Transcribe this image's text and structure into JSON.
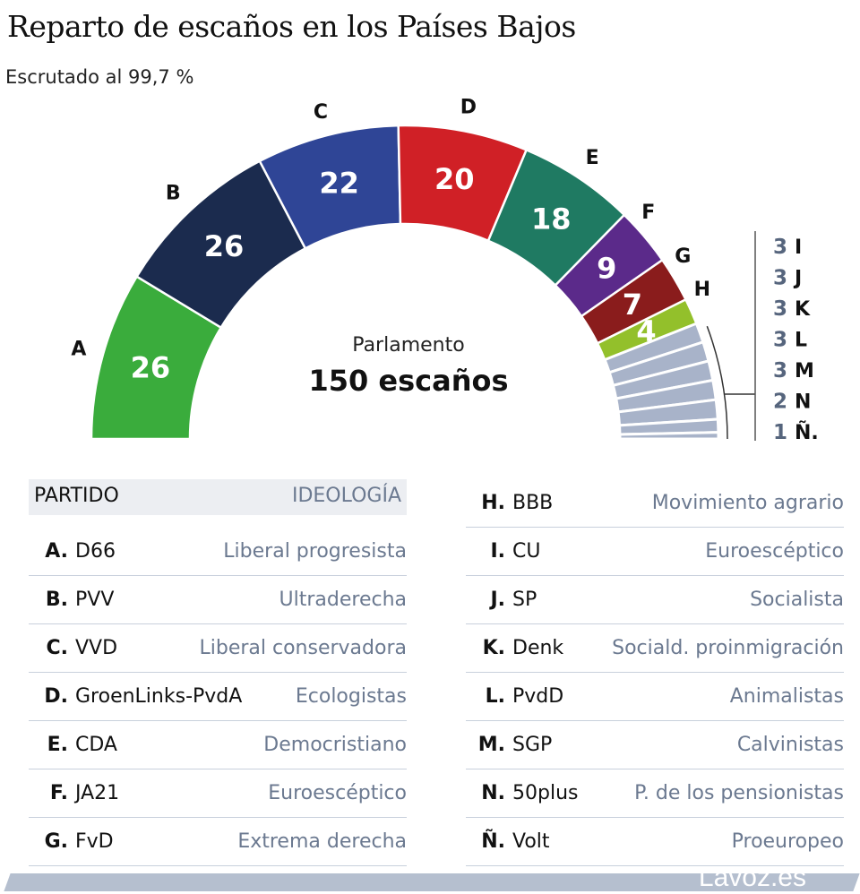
{
  "title": "Reparto de escaños en los Países Bajos",
  "subtitle": "Escrutado al 99,7 %",
  "logo": "Lavoz.es",
  "chart_data": {
    "type": "parliament",
    "center_label": "Parlamento",
    "center_total": "150 escaños",
    "total": 150,
    "parties": [
      {
        "letter": "A",
        "name": "D66",
        "ideology": "Liberal progresista",
        "seats": 26,
        "color": "#3aac3c"
      },
      {
        "letter": "B",
        "name": "PVV",
        "ideology": "Ultraderecha",
        "seats": 26,
        "color": "#1b2b4e"
      },
      {
        "letter": "C",
        "name": "VVD",
        "ideology": "Liberal conservadora",
        "seats": 22,
        "color": "#2f4596"
      },
      {
        "letter": "D",
        "name": "GroenLinks-PvdA",
        "ideology": "Ecologistas",
        "seats": 20,
        "color": "#d02026"
      },
      {
        "letter": "E",
        "name": "CDA",
        "ideology": "Democristiano",
        "seats": 18,
        "color": "#1f7a62"
      },
      {
        "letter": "F",
        "name": "JA21",
        "ideology": "Euroescéptico",
        "seats": 9,
        "color": "#5b2a8a"
      },
      {
        "letter": "G",
        "name": "FvD",
        "ideology": "Extrema derecha",
        "seats": 7,
        "color": "#8a1c1c"
      },
      {
        "letter": "H",
        "name": "BBB",
        "ideology": "Movimiento agrario",
        "seats": 4,
        "color": "#93c02b"
      },
      {
        "letter": "I",
        "name": "CU",
        "ideology": "Euroescéptico",
        "seats": 3,
        "color": "#a8b3c9"
      },
      {
        "letter": "J",
        "name": "SP",
        "ideology": "Socialista",
        "seats": 3,
        "color": "#a8b3c9"
      },
      {
        "letter": "K",
        "name": "Denk",
        "ideology": "Sociald. proinmigración",
        "seats": 3,
        "color": "#a8b3c9"
      },
      {
        "letter": "L",
        "name": "PvdD",
        "ideology": "Animalistas",
        "seats": 3,
        "color": "#a8b3c9"
      },
      {
        "letter": "M",
        "name": "SGP",
        "ideology": "Calvinistas",
        "seats": 3,
        "color": "#a8b3c9"
      },
      {
        "letter": "N",
        "name": "50plus",
        "ideology": "P. de los pensionistas",
        "seats": 2,
        "color": "#a8b3c9"
      },
      {
        "letter": "Ñ",
        "name": "Volt",
        "ideology": "Proeuropeo",
        "seats": 1,
        "color": "#a8b3c9"
      }
    ]
  },
  "table": {
    "header_party": "PARTIDO",
    "header_ideology": "IDEOLOGÍA"
  }
}
